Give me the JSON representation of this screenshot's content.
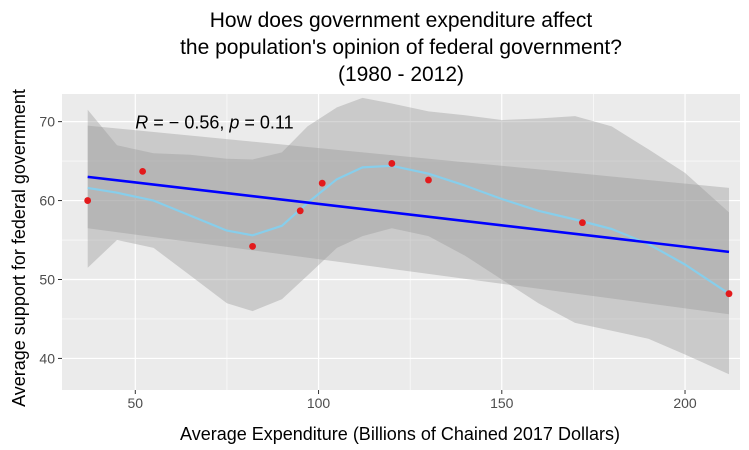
{
  "chart_data": {
    "type": "scatter",
    "title_lines": [
      "How does government expenditure affect",
      "the population's opinion of federal government?",
      "(1980 - 2012)"
    ],
    "xlabel": "Average Expenditure (Billions of Chained 2017 Dollars)",
    "ylabel": "Average support for federal government",
    "xlim": [
      30,
      215
    ],
    "ylim": [
      36,
      73.5
    ],
    "x_ticks": [
      50,
      100,
      150,
      200
    ],
    "y_ticks": [
      40,
      50,
      60,
      70
    ],
    "grid": true,
    "annotation": {
      "r_symbol": "R",
      "r_value": " = − 0.56, ",
      "p_symbol": "p",
      "p_value": " = 0.11",
      "x": 50,
      "y": 70
    },
    "colors": {
      "panel": "#ebebeb",
      "grid": "#ffffff",
      "points": "#e31a1c",
      "linear_fit": "#0000ff",
      "smooth_fit": "#87ceeb",
      "confidence_band": "#999999"
    },
    "points": [
      {
        "x": 37,
        "y": 60.0
      },
      {
        "x": 52,
        "y": 63.7
      },
      {
        "x": 82,
        "y": 54.2
      },
      {
        "x": 95,
        "y": 58.7
      },
      {
        "x": 101,
        "y": 62.2
      },
      {
        "x": 120,
        "y": 64.7
      },
      {
        "x": 130,
        "y": 62.6
      },
      {
        "x": 172,
        "y": 57.2
      },
      {
        "x": 212,
        "y": 48.2
      }
    ],
    "linear_fit": {
      "x": [
        37,
        212
      ],
      "y": [
        63.0,
        53.5
      ]
    },
    "linear_band": {
      "x": [
        37,
        212
      ],
      "lower": [
        56.5,
        45.6
      ],
      "upper": [
        69.5,
        61.6
      ]
    },
    "smooth_fit": {
      "x": [
        37,
        45,
        55,
        65,
        75,
        82,
        90,
        97,
        105,
        112,
        120,
        130,
        140,
        150,
        160,
        170,
        180,
        190,
        200,
        212
      ],
      "y": [
        61.6,
        61.0,
        60.0,
        58.1,
        56.2,
        55.6,
        56.8,
        59.7,
        62.7,
        64.2,
        64.4,
        63.4,
        61.9,
        60.2,
        58.7,
        57.6,
        56.4,
        54.5,
        51.9,
        48.2
      ]
    },
    "smooth_band": {
      "x": [
        37,
        45,
        55,
        65,
        75,
        82,
        90,
        97,
        105,
        112,
        120,
        130,
        140,
        150,
        160,
        170,
        180,
        190,
        200,
        212
      ],
      "lower": [
        51.5,
        55.0,
        54.0,
        50.5,
        47.0,
        46.0,
        47.5,
        50.5,
        54.0,
        55.5,
        56.5,
        55.5,
        53.0,
        50.0,
        47.0,
        44.5,
        43.5,
        42.5,
        40.5,
        38.0
      ],
      "upper": [
        71.5,
        67.0,
        66.0,
        65.8,
        65.3,
        65.2,
        66.1,
        69.4,
        71.8,
        73.0,
        72.3,
        71.3,
        70.8,
        70.2,
        70.4,
        70.7,
        69.4,
        66.5,
        63.5,
        58.5
      ]
    }
  }
}
